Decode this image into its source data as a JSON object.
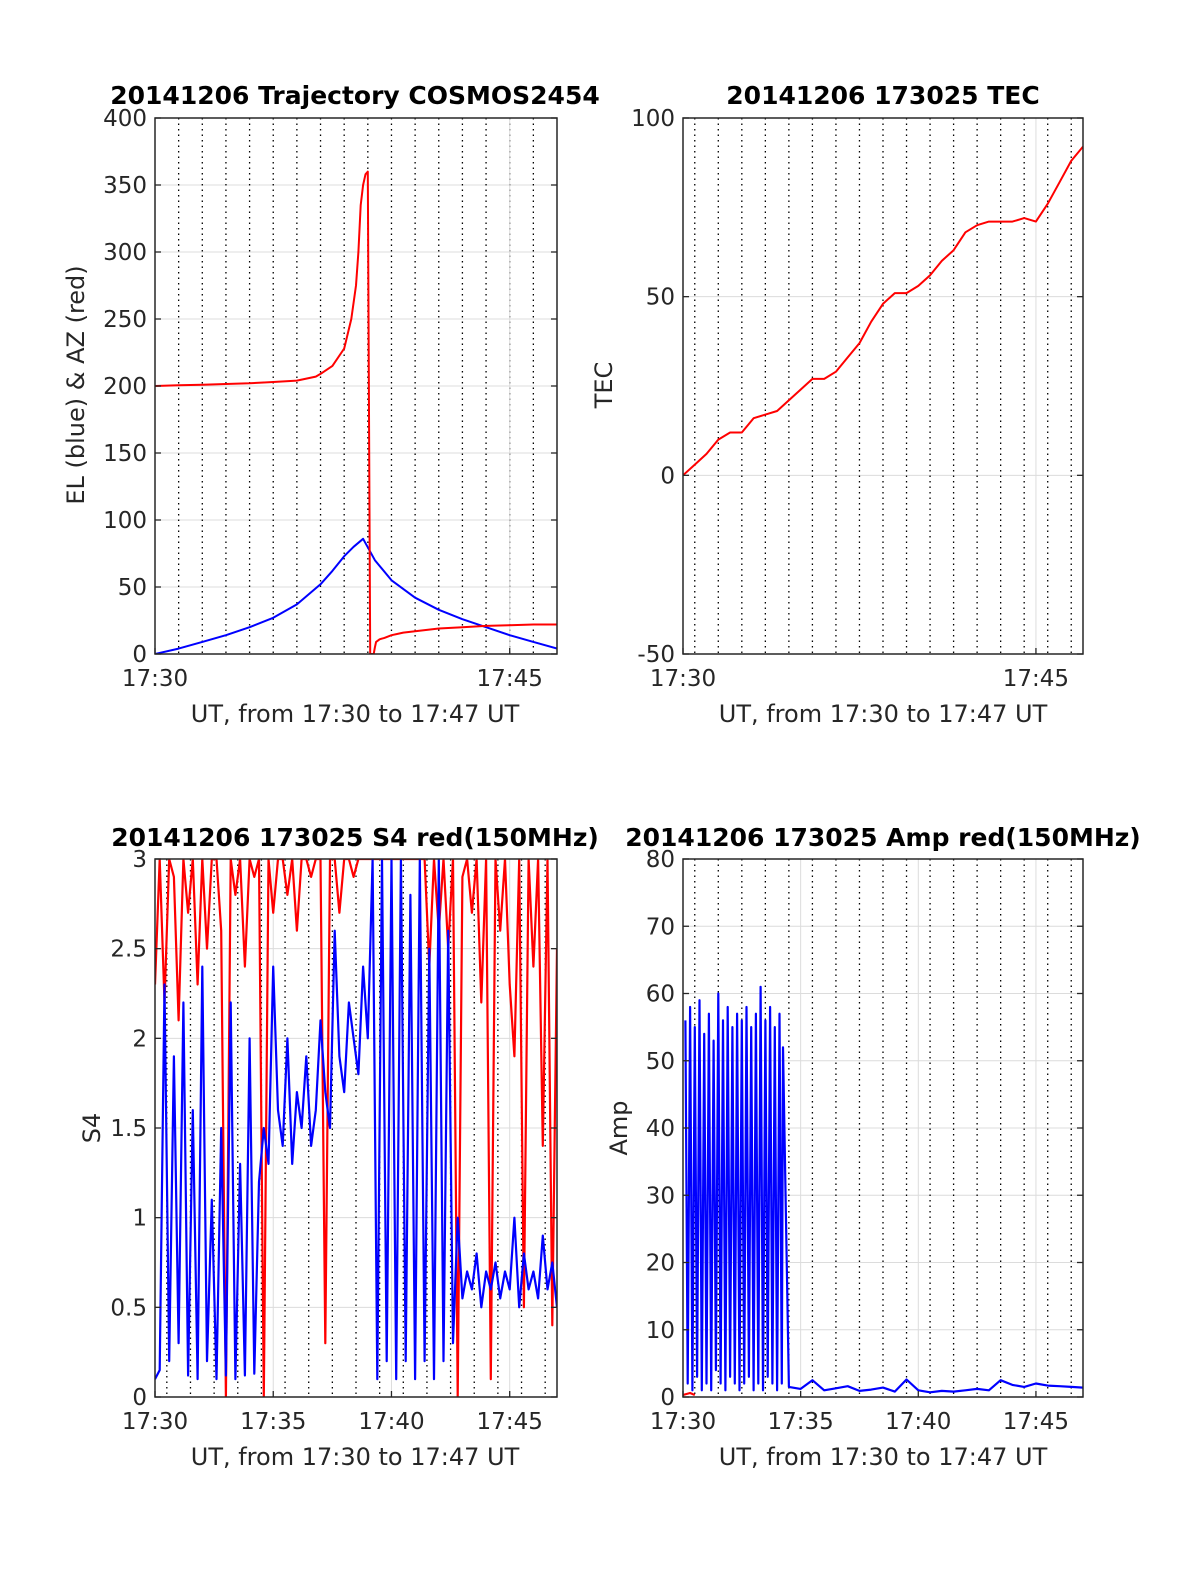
{
  "colors": {
    "el": "#0000ff",
    "az": "#ff0000",
    "tec": "#ff0000",
    "s4_red": "#ff0000",
    "s4_blue": "#0000ff",
    "amp_red": "#ff0000",
    "amp_blue": "#0000ff",
    "minor_grid": "#000000",
    "major_grid": "#dcdcdc",
    "axes": "#262626"
  },
  "chart_data": [
    {
      "id": "trajectory",
      "type": "line",
      "title": "20141206 Trajectory COSMOS2454",
      "xlabel": "UT, from 17:30 to 17:47 UT",
      "ylabel": "EL (blue) & AZ (red)",
      "xlim_minutes": [
        0,
        17
      ],
      "ylim": [
        0,
        400
      ],
      "xticks": [
        {
          "value": 0,
          "label": "17:30"
        },
        {
          "value": 15,
          "label": "17:45"
        }
      ],
      "yticks": [
        0,
        50,
        100,
        150,
        200,
        250,
        300,
        350,
        400
      ],
      "grid": true,
      "minor_grid_minutes": [
        1,
        2,
        3,
        4,
        5,
        6,
        7,
        8,
        9,
        10,
        11,
        12,
        13,
        14,
        15,
        16
      ],
      "series": [
        {
          "color": "el",
          "x": [
            0,
            1,
            2,
            3,
            4,
            5,
            6,
            7,
            7.5,
            8,
            8.4,
            8.8,
            9.3,
            10,
            11,
            12,
            13,
            14,
            15,
            16,
            17
          ],
          "y": [
            0,
            4,
            9,
            14,
            20,
            27,
            37,
            52,
            62,
            73,
            80,
            86,
            70,
            55,
            42,
            33,
            26,
            20,
            14,
            9,
            4
          ]
        },
        {
          "color": "az",
          "x": [
            0,
            1,
            2,
            3,
            4,
            5,
            6,
            6.8,
            7,
            7.5,
            8,
            8.3,
            8.5,
            8.6,
            8.7,
            8.8,
            8.9,
            9,
            9.1,
            9.25,
            9.3,
            9.35,
            9.5,
            9.7,
            10,
            10.5,
            11,
            12,
            13,
            14,
            15,
            16,
            17
          ],
          "y": [
            200,
            200.5,
            201,
            201.5,
            202,
            203,
            204,
            207,
            209,
            215,
            228,
            250,
            275,
            300,
            335,
            350,
            358,
            360,
            0,
            0,
            5,
            9,
            11,
            12,
            14,
            16,
            17,
            19,
            20,
            21,
            21.5,
            22,
            22
          ]
        }
      ]
    },
    {
      "id": "tec",
      "type": "line",
      "title": "20141206 173025 TEC",
      "xlabel": "UT, from 17:30 to 17:47 UT",
      "ylabel": "TEC",
      "xlim_minutes": [
        0,
        17
      ],
      "ylim": [
        -50,
        100
      ],
      "xticks": [
        {
          "value": 0,
          "label": "17:30"
        },
        {
          "value": 15,
          "label": "17:45"
        }
      ],
      "yticks": [
        -50,
        0,
        50,
        100
      ],
      "grid": true,
      "minor_grid_minutes": [
        0.5,
        1.5,
        2.5,
        3.5,
        4.5,
        5.5,
        6.5,
        7.5,
        8.5,
        9.5,
        10.5,
        11.5,
        12.5,
        13.5,
        14.5,
        15.5,
        16.5
      ],
      "series": [
        {
          "color": "tec",
          "x": [
            0,
            0.5,
            1,
            1.5,
            2,
            2.5,
            3,
            3.5,
            4,
            4.5,
            5,
            5.5,
            6,
            6.5,
            7,
            7.5,
            8,
            8.5,
            9,
            9.5,
            10,
            10.5,
            11,
            11.5,
            12,
            12.5,
            13,
            13.5,
            14,
            14.5,
            15,
            15.5,
            16,
            16.5,
            17
          ],
          "y": [
            0,
            3,
            6,
            10,
            12,
            12,
            16,
            17,
            18,
            21,
            24,
            27,
            27,
            29,
            33,
            37,
            43,
            48,
            51,
            51,
            53,
            56,
            60,
            63,
            68,
            70,
            71,
            71,
            71,
            72,
            71,
            76,
            82,
            88,
            92
          ]
        }
      ]
    },
    {
      "id": "s4",
      "type": "line",
      "title": "20141206 173025 S4 red(150MHz)",
      "xlabel": "UT, from 17:30 to 17:47 UT",
      "ylabel": "S4",
      "xlim_minutes": [
        0,
        17
      ],
      "ylim": [
        0,
        3
      ],
      "xticks": [
        {
          "value": 0,
          "label": "17:30"
        },
        {
          "value": 5,
          "label": "17:35"
        },
        {
          "value": 10,
          "label": "17:40"
        },
        {
          "value": 15,
          "label": "17:45"
        }
      ],
      "yticks": [
        {
          "value": 0,
          "label": "0"
        },
        {
          "value": 0.5,
          "label": "0.5"
        },
        {
          "value": 1,
          "label": "1"
        },
        {
          "value": 1.5,
          "label": "1.5"
        },
        {
          "value": 2,
          "label": "2"
        },
        {
          "value": 2.5,
          "label": "2.5"
        },
        {
          "value": 3,
          "label": "3"
        }
      ],
      "grid": true,
      "minor_grid_minutes": [
        0.5,
        1.5,
        2.5,
        3.5,
        4.5,
        5.5,
        6.5,
        7.5,
        8.5,
        9.5,
        10.5,
        11.5,
        12.5,
        13.5,
        14.5,
        15.5,
        16.5
      ],
      "series": [
        {
          "color": "s4_red",
          "x": [
            0,
            0.2,
            0.4,
            0.6,
            0.8,
            1.0,
            1.2,
            1.4,
            1.6,
            1.8,
            2.0,
            2.2,
            2.4,
            2.6,
            2.8,
            3.0,
            3.2,
            3.4,
            3.6,
            3.8,
            4.0,
            4.2,
            4.4,
            4.6,
            4.8,
            5.0,
            5.2,
            5.4,
            5.6,
            5.8,
            6.0,
            6.2,
            6.4,
            6.6,
            6.8,
            7.0,
            7.2,
            7.4,
            7.6,
            7.8,
            8.0,
            8.2,
            8.4,
            8.6,
            8.8,
            9.0,
            9.2,
            9.4,
            9.6,
            9.8,
            10.0,
            10.2,
            10.4,
            10.6,
            10.8,
            11.0,
            11.2,
            11.4,
            11.6,
            11.8,
            12.0,
            12.2,
            12.4,
            12.6,
            12.8,
            13.0,
            13.2,
            13.4,
            13.6,
            13.8,
            14.0,
            14.2,
            14.4,
            14.6,
            14.8,
            15.0,
            15.2,
            15.4,
            15.6,
            15.8,
            16.0,
            16.2,
            16.4,
            16.6,
            16.8,
            17.0
          ],
          "y": [
            2.3,
            3,
            2.2,
            3,
            2.9,
            2.1,
            3,
            2.7,
            3,
            2.3,
            3,
            2.5,
            3,
            3,
            2.6,
            0,
            3,
            2.8,
            3,
            2.4,
            3,
            2.9,
            3,
            0,
            3,
            2.7,
            3,
            3,
            2.8,
            3,
            2.6,
            3,
            3,
            2.9,
            3,
            3,
            0.3,
            3,
            3,
            2.7,
            3,
            3,
            2.9,
            3,
            3,
            3,
            3,
            3,
            3,
            3,
            3,
            3,
            3,
            3,
            3,
            3,
            3,
            3,
            2.4,
            3,
            2.6,
            3,
            2.5,
            3,
            0,
            2.9,
            3,
            2.7,
            3,
            2.2,
            3,
            0.1,
            3,
            2.6,
            3,
            2.3,
            1.9,
            3,
            0.5,
            3,
            2.4,
            3,
            1.4,
            3,
            0.4,
            2.5
          ]
        },
        {
          "color": "s4_blue",
          "x": [
            0,
            0.2,
            0.4,
            0.6,
            0.8,
            1.0,
            1.2,
            1.4,
            1.6,
            1.8,
            2.0,
            2.2,
            2.4,
            2.6,
            2.8,
            3.0,
            3.2,
            3.4,
            3.6,
            3.8,
            4.0,
            4.2,
            4.4,
            4.6,
            4.8,
            5.0,
            5.2,
            5.4,
            5.6,
            5.8,
            6.0,
            6.2,
            6.4,
            6.6,
            6.8,
            7.0,
            7.2,
            7.4,
            7.6,
            7.8,
            8.0,
            8.2,
            8.4,
            8.6,
            8.8,
            9.0,
            9.2,
            9.4,
            9.6,
            9.8,
            10.0,
            10.2,
            10.4,
            10.6,
            10.8,
            11.0,
            11.2,
            11.4,
            11.6,
            11.8,
            12.0,
            12.2,
            12.4,
            12.6,
            12.8,
            13.0,
            13.2,
            13.4,
            13.6,
            13.8,
            14.0,
            14.2,
            14.4,
            14.6,
            14.8,
            15.0,
            15.2,
            15.4,
            15.6,
            15.8,
            16.0,
            16.2,
            16.4,
            16.6,
            16.8,
            17.0
          ],
          "y": [
            0.1,
            0.15,
            2.3,
            0.2,
            1.9,
            0.3,
            2.2,
            0.12,
            1.6,
            0.1,
            2.4,
            0.2,
            1.1,
            0.1,
            1.5,
            0.12,
            2.2,
            0.1,
            1.3,
            0.12,
            2.0,
            0.13,
            1.2,
            1.5,
            1.3,
            2.4,
            1.6,
            1.4,
            2.0,
            1.3,
            1.7,
            1.5,
            1.9,
            1.4,
            1.6,
            2.1,
            1.7,
            1.5,
            2.6,
            1.9,
            1.7,
            2.2,
            2.0,
            1.8,
            2.4,
            2.0,
            3,
            0.1,
            3,
            0.2,
            3,
            0.1,
            3,
            0.2,
            2.8,
            0.1,
            3,
            0.2,
            2.5,
            0.1,
            3,
            0.2,
            2.6,
            0.3,
            1.0,
            0.55,
            0.7,
            0.6,
            0.8,
            0.5,
            0.7,
            0.6,
            0.75,
            0.55,
            0.7,
            0.6,
            1.0,
            0.5,
            0.8,
            0.6,
            0.7,
            0.55,
            0.9,
            0.6,
            0.75,
            0.5
          ]
        }
      ]
    },
    {
      "id": "amp",
      "type": "line",
      "title": "20141206 173025 Amp red(150MHz)",
      "xlabel": "UT, from 17:30 to 17:47 UT",
      "ylabel": "Amp",
      "xlim_minutes": [
        0,
        17
      ],
      "ylim": [
        0,
        80
      ],
      "xticks": [
        {
          "value": 0,
          "label": "17:30"
        },
        {
          "value": 5,
          "label": "17:35"
        },
        {
          "value": 10,
          "label": "17:40"
        },
        {
          "value": 15,
          "label": "17:45"
        }
      ],
      "yticks": [
        0,
        10,
        20,
        30,
        40,
        50,
        60,
        70,
        80
      ],
      "grid": true,
      "minor_grid_minutes": [
        0.5,
        1.5,
        2.5,
        3.5,
        4.5,
        5.5,
        6.5,
        7.5,
        8.5,
        9.5,
        10.5,
        11.5,
        12.5,
        13.5,
        14.5,
        15.5,
        16.5
      ],
      "series": [
        {
          "color": "amp_red",
          "x": [
            0,
            0.3,
            0.5
          ],
          "y": [
            0.3,
            0.6,
            0.3
          ]
        },
        {
          "color": "amp_blue",
          "x": [
            0.1,
            0.2,
            0.3,
            0.4,
            0.5,
            0.6,
            0.7,
            0.8,
            0.9,
            1.0,
            1.1,
            1.2,
            1.3,
            1.4,
            1.5,
            1.6,
            1.7,
            1.8,
            1.9,
            2.0,
            2.1,
            2.2,
            2.3,
            2.4,
            2.5,
            2.6,
            2.7,
            2.8,
            2.9,
            3.0,
            3.1,
            3.2,
            3.3,
            3.4,
            3.5,
            3.6,
            3.7,
            3.8,
            3.9,
            4.0,
            4.1,
            4.2,
            4.25,
            4.5,
            5.0,
            5.5,
            6.0,
            6.5,
            7.0,
            7.5,
            8.0,
            8.5,
            9.0,
            9.5,
            10.0,
            10.5,
            11.0,
            11.5,
            12.0,
            12.5,
            13.0,
            13.5,
            14.0,
            14.5,
            15.0,
            15.5,
            16.0,
            16.5,
            17.0
          ],
          "y": [
            56,
            2,
            58,
            1,
            55,
            3,
            59,
            1,
            54,
            2,
            57,
            1,
            53,
            4,
            60,
            2,
            56,
            1,
            58,
            3,
            55,
            2,
            57,
            1,
            56,
            2,
            58,
            3,
            55,
            1,
            57,
            2,
            61,
            1,
            56,
            3,
            58,
            2,
            55,
            1,
            57,
            2,
            52,
            1.5,
            1.2,
            2.5,
            1.0,
            1.3,
            1.6,
            0.9,
            1.1,
            1.4,
            0.8,
            2.6,
            1.0,
            0.7,
            0.9,
            0.8,
            1.0,
            1.2,
            1.0,
            2.5,
            1.8,
            1.5,
            2.0,
            1.7,
            1.6,
            1.5,
            1.4
          ]
        }
      ]
    }
  ]
}
